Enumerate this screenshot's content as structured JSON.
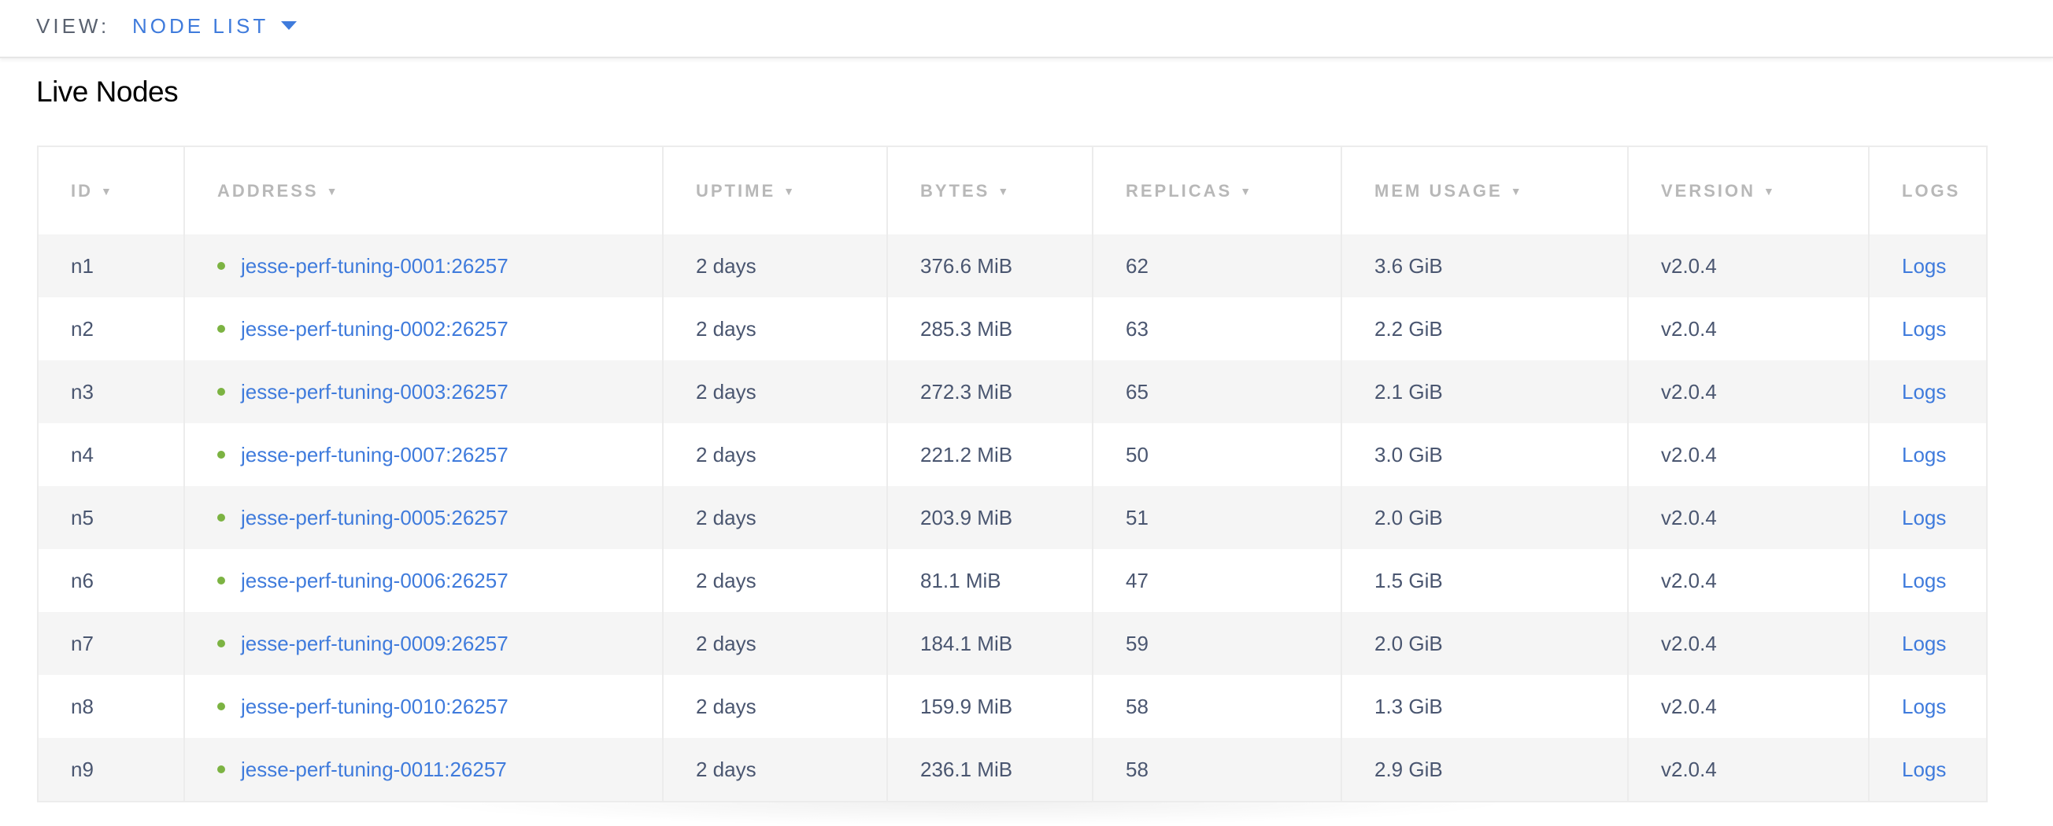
{
  "header": {
    "view_label": "VIEW:",
    "view_value": "NODE LIST"
  },
  "title": "Live Nodes",
  "table": {
    "columns": [
      "ID",
      "ADDRESS",
      "UPTIME",
      "BYTES",
      "REPLICAS",
      "MEM USAGE",
      "VERSION",
      "LOGS"
    ],
    "sort_indicator": "▼",
    "rows": [
      {
        "id": "n1",
        "address": "jesse-perf-tuning-0001:26257",
        "uptime": "2 days",
        "bytes": "376.6 MiB",
        "replicas": "62",
        "mem": "3.6 GiB",
        "version": "v2.0.4",
        "logs": "Logs"
      },
      {
        "id": "n2",
        "address": "jesse-perf-tuning-0002:26257",
        "uptime": "2 days",
        "bytes": "285.3 MiB",
        "replicas": "63",
        "mem": "2.2 GiB",
        "version": "v2.0.4",
        "logs": "Logs"
      },
      {
        "id": "n3",
        "address": "jesse-perf-tuning-0003:26257",
        "uptime": "2 days",
        "bytes": "272.3 MiB",
        "replicas": "65",
        "mem": "2.1 GiB",
        "version": "v2.0.4",
        "logs": "Logs"
      },
      {
        "id": "n4",
        "address": "jesse-perf-tuning-0007:26257",
        "uptime": "2 days",
        "bytes": "221.2 MiB",
        "replicas": "50",
        "mem": "3.0 GiB",
        "version": "v2.0.4",
        "logs": "Logs"
      },
      {
        "id": "n5",
        "address": "jesse-perf-tuning-0005:26257",
        "uptime": "2 days",
        "bytes": "203.9 MiB",
        "replicas": "51",
        "mem": "2.0 GiB",
        "version": "v2.0.4",
        "logs": "Logs"
      },
      {
        "id": "n6",
        "address": "jesse-perf-tuning-0006:26257",
        "uptime": "2 days",
        "bytes": "81.1 MiB",
        "replicas": "47",
        "mem": "1.5 GiB",
        "version": "v2.0.4",
        "logs": "Logs"
      },
      {
        "id": "n7",
        "address": "jesse-perf-tuning-0009:26257",
        "uptime": "2 days",
        "bytes": "184.1 MiB",
        "replicas": "59",
        "mem": "2.0 GiB",
        "version": "v2.0.4",
        "logs": "Logs"
      },
      {
        "id": "n8",
        "address": "jesse-perf-tuning-0010:26257",
        "uptime": "2 days",
        "bytes": "159.9 MiB",
        "replicas": "58",
        "mem": "1.3 GiB",
        "version": "v2.0.4",
        "logs": "Logs"
      },
      {
        "id": "n9",
        "address": "jesse-perf-tuning-0011:26257",
        "uptime": "2 days",
        "bytes": "236.1 MiB",
        "replicas": "58",
        "mem": "2.9 GiB",
        "version": "v2.0.4",
        "logs": "Logs"
      }
    ]
  },
  "colors": {
    "link": "#3f7bdc",
    "status_live": "#7cb342",
    "stripe": "#f5f5f5"
  }
}
